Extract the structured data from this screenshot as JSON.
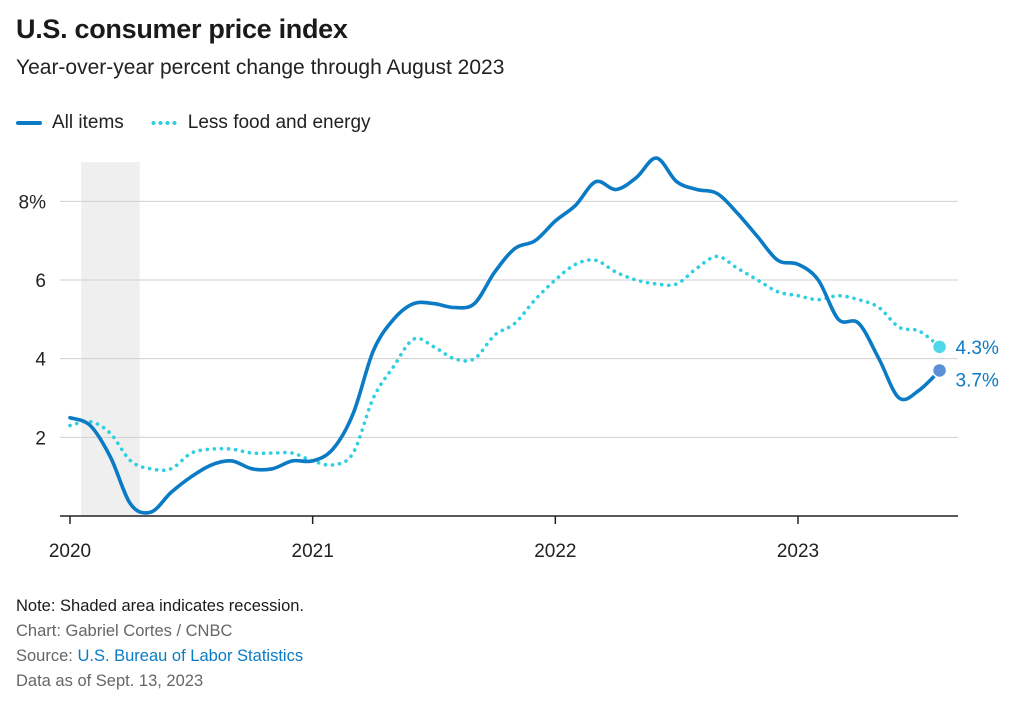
{
  "header": {
    "title": "U.S. consumer price index",
    "subtitle": "Year-over-year percent change through August 2023"
  },
  "legend": {
    "items": [
      {
        "label": "All items",
        "style": "solid"
      },
      {
        "label": "Less food and energy",
        "style": "dotted"
      }
    ]
  },
  "footer": {
    "note": "Note: Shaded area indicates recession.",
    "credit": "Chart: Gabriel Cortes / CNBC",
    "source_prefix": "Source: ",
    "source_link": "U.S. Bureau of Labor Statistics",
    "data_as_of": "Data as of Sept. 13, 2023"
  },
  "chart_data": {
    "type": "line",
    "title": "U.S. consumer price index",
    "subtitle": "Year-over-year percent change through August 2023",
    "x_unit": "month",
    "x_start": "2020-01",
    "xticks": [
      "2020",
      "2021",
      "2022",
      "2023"
    ],
    "yticks": [
      "2",
      "4",
      "6",
      "8%"
    ],
    "ylim": [
      0,
      9
    ],
    "grid": true,
    "legend_position": "top-left",
    "recession_shading": {
      "start": "2020-02",
      "end": "2020-04"
    },
    "colors": {
      "all_items": "#0a7bc4",
      "core": "#2ecfe0",
      "recession": "#efefef",
      "grid": "#cfcfcf"
    },
    "series": [
      {
        "name": "All items",
        "style": "solid",
        "values": [
          2.5,
          2.3,
          1.5,
          0.3,
          0.1,
          0.6,
          1.0,
          1.3,
          1.4,
          1.2,
          1.2,
          1.4,
          1.4,
          1.7,
          2.6,
          4.2,
          5.0,
          5.4,
          5.4,
          5.3,
          5.4,
          6.2,
          6.8,
          7.0,
          7.5,
          7.9,
          8.5,
          8.3,
          8.6,
          9.1,
          8.5,
          8.3,
          8.2,
          7.7,
          7.1,
          6.5,
          6.4,
          6.0,
          5.0,
          4.9,
          4.0,
          3.0,
          3.2,
          3.7
        ],
        "end_label": "3.7%"
      },
      {
        "name": "Less food and energy",
        "style": "dotted",
        "values": [
          2.3,
          2.4,
          2.1,
          1.4,
          1.2,
          1.2,
          1.6,
          1.7,
          1.7,
          1.6,
          1.6,
          1.6,
          1.4,
          1.3,
          1.6,
          3.0,
          3.8,
          4.5,
          4.3,
          4.0,
          4.0,
          4.6,
          4.9,
          5.5,
          6.0,
          6.4,
          6.5,
          6.2,
          6.0,
          5.9,
          5.9,
          6.3,
          6.6,
          6.3,
          6.0,
          5.7,
          5.6,
          5.5,
          5.6,
          5.5,
          5.3,
          4.8,
          4.7,
          4.3
        ],
        "end_label": "4.3%"
      }
    ]
  }
}
